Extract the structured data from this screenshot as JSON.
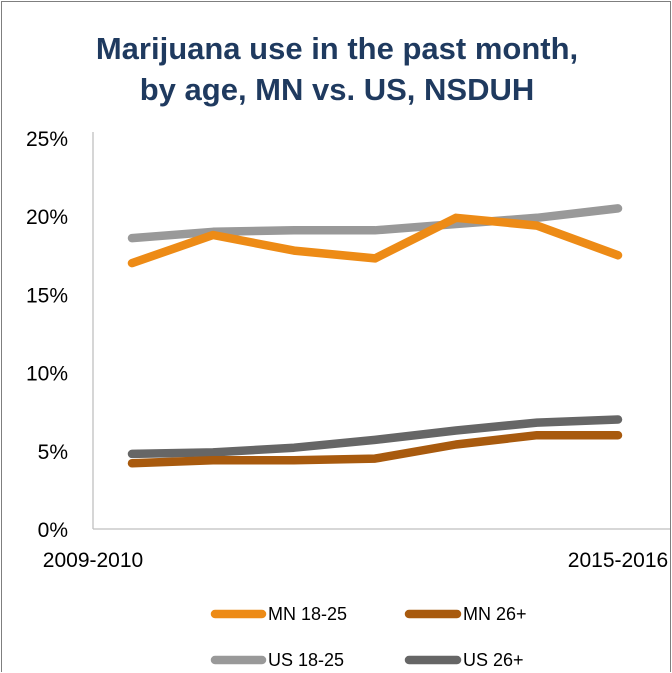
{
  "chart_data": {
    "type": "line",
    "title_lines": [
      "Marijuana use in the past month,",
      "by age, MN vs. US, NSDUH"
    ],
    "xlabel": "",
    "ylabel": "",
    "x": [
      "2009-2010",
      "",
      "",
      "",
      "",
      "",
      "2015-2016"
    ],
    "x_tick_labels": [
      "2009-2010",
      "2015-2016"
    ],
    "ylim": [
      0,
      25
    ],
    "y_ticks": [
      "0%",
      "5%",
      "10%",
      "15%",
      "20%",
      "25%"
    ],
    "grid": false,
    "legend_position": "bottom",
    "series": [
      {
        "name": "MN 18-25",
        "color": "#ed8b16",
        "values": [
          17.0,
          18.8,
          17.8,
          17.3,
          19.9,
          19.4,
          17.5
        ]
      },
      {
        "name": "MN 26+",
        "color": "#a85a0e",
        "values": [
          4.2,
          4.4,
          4.4,
          4.5,
          5.4,
          6.0,
          6.0
        ]
      },
      {
        "name": "US 18-25",
        "color": "#999999",
        "values": [
          18.6,
          19.0,
          19.1,
          19.1,
          19.5,
          19.9,
          20.5
        ]
      },
      {
        "name": "US 26+",
        "color": "#666666",
        "values": [
          4.8,
          4.9,
          5.2,
          5.7,
          6.3,
          6.8,
          7.0
        ]
      }
    ]
  }
}
